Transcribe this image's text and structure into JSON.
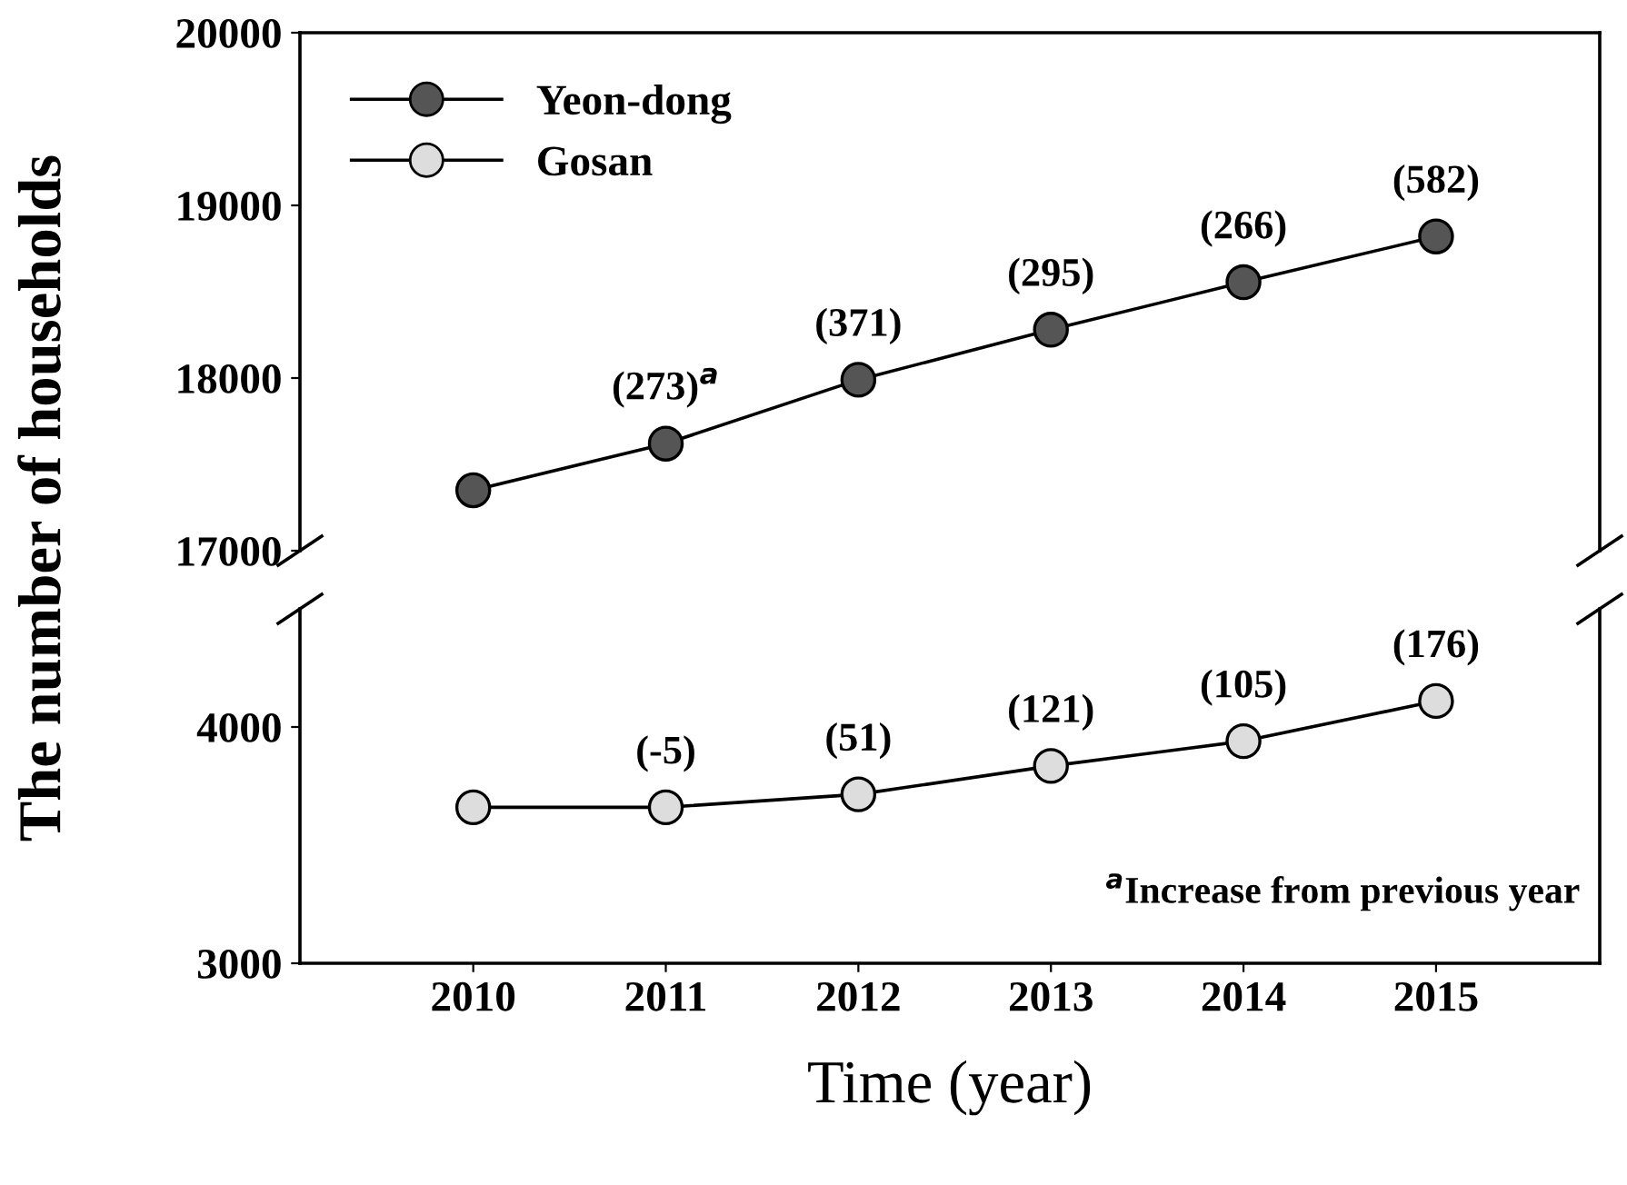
{
  "chart_data": [
    {
      "type": "line",
      "ylabel": "The number of households",
      "x": [
        2010,
        2011,
        2012,
        2013,
        2014,
        2015
      ],
      "xlim": [
        2009.1,
        2015.85
      ],
      "ylim": [
        17000,
        20000
      ],
      "yticks": [
        17000,
        18000,
        19000,
        20000
      ],
      "tick_labels": "y",
      "marker": "circle",
      "line_style": "solid",
      "legend": "top left",
      "grid": false,
      "series": [
        {
          "name": "Yeon-dong",
          "color": "#555555",
          "values": [
            17350,
            17620,
            17990,
            18280,
            18555,
            18820
          ]
        }
      ],
      "annotations": [
        {
          "text": "(273)$^{a}$",
          "x": 2011,
          "y": 17620
        },
        {
          "text": "(371)",
          "x": 2012,
          "y": 17990
        },
        {
          "text": "(295)",
          "x": 2013,
          "y": 18280
        },
        {
          "text": "(266)",
          "x": 2014,
          "y": 18555
        },
        {
          "text": "(582)",
          "x": 2015,
          "y": 18820
        }
      ]
    },
    {
      "type": "line",
      "xlabel": "Time (year)",
      "x": [
        2010,
        2011,
        2012,
        2013,
        2014,
        2015
      ],
      "xlim": [
        2009.1,
        2015.85
      ],
      "xticks": [
        2010,
        2011,
        2012,
        2013,
        2014,
        2015
      ],
      "ylim": [
        3000,
        4500
      ],
      "yticks": [
        3000,
        4000
      ],
      "marker": "circle",
      "line_style": "solid",
      "grid": false,
      "series": [
        {
          "name": "Gosan",
          "color": "#dddddd",
          "values": [
            3660,
            3660,
            3715,
            3835,
            3940,
            4110
          ]
        }
      ],
      "annotations": [
        {
          "text": "(-5)",
          "x": 2011,
          "y": 3660
        },
        {
          "text": "(51)",
          "x": 2012,
          "y": 3715
        },
        {
          "text": "(121)",
          "x": 2013,
          "y": 3835
        },
        {
          "text": "(105)",
          "x": 2014,
          "y": 3940
        },
        {
          "text": "(176)",
          "x": 2015,
          "y": 4110
        },
        "$^{a}$Increase from previous year"
      ]
    }
  ]
}
